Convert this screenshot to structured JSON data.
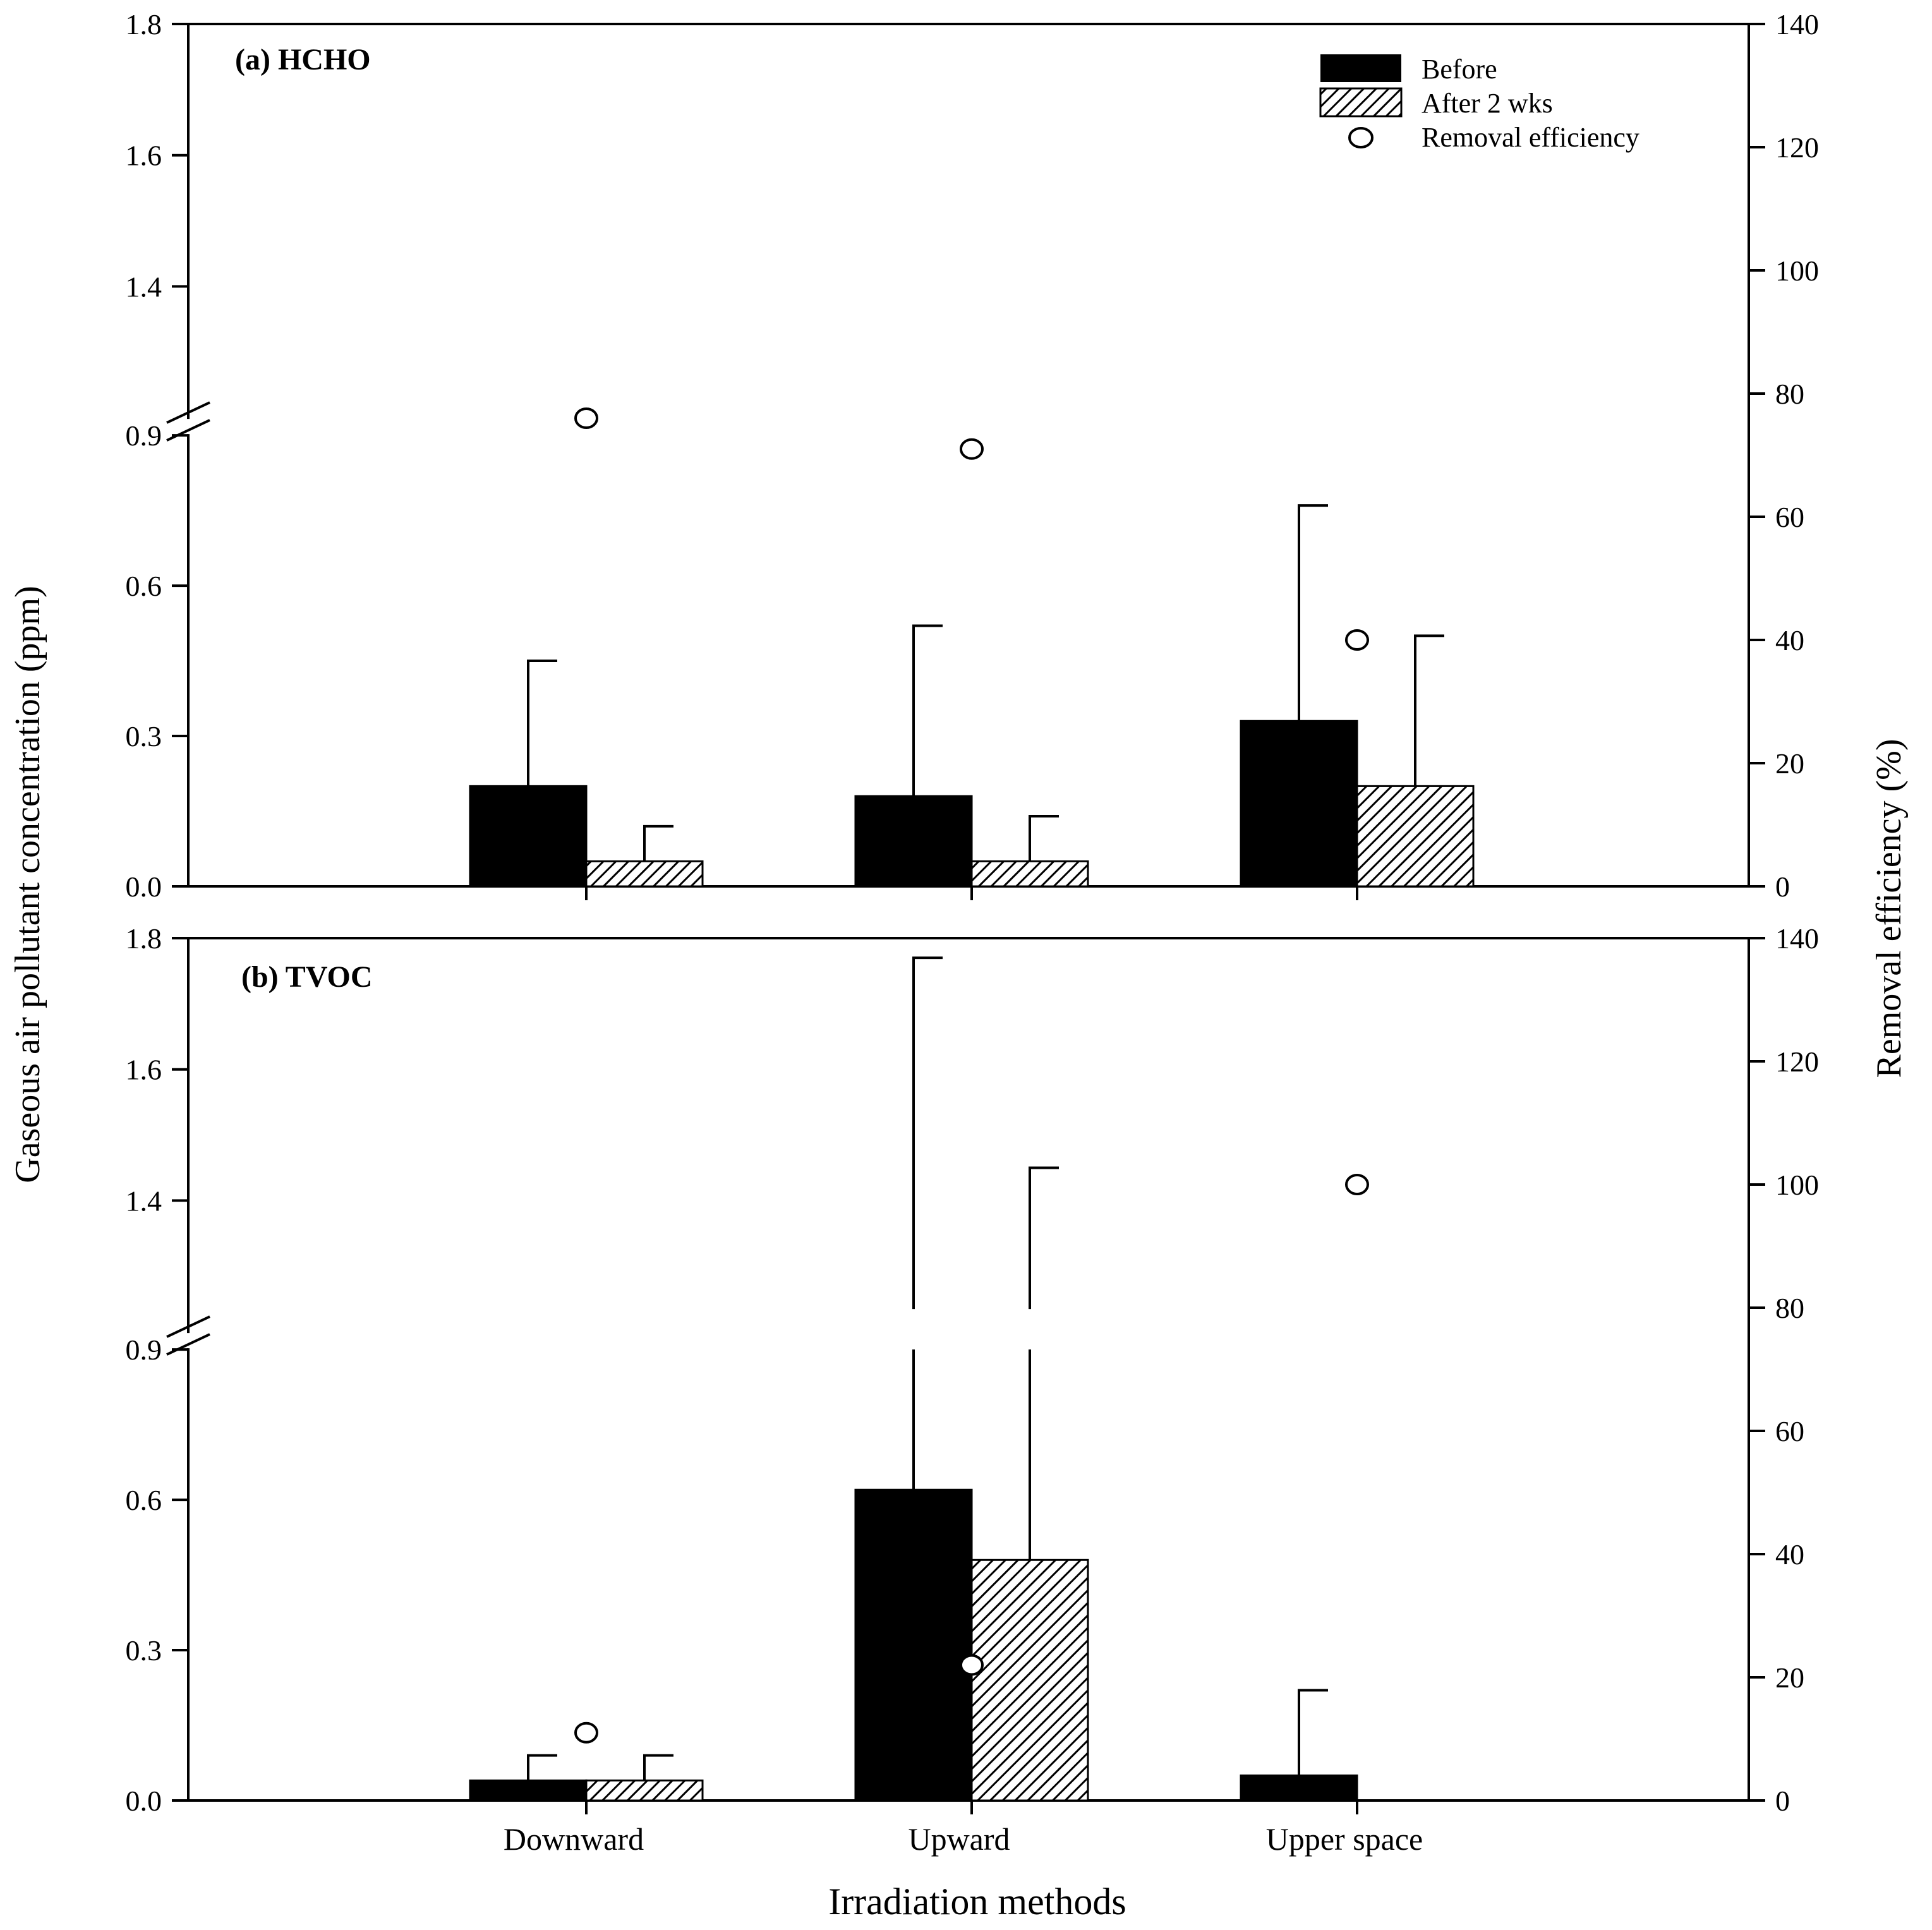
{
  "chart_data": {
    "type": "bar",
    "categories": [
      "Downward",
      "Upward",
      "Upper space"
    ],
    "xlabel": "Irradiation methods",
    "ylabel_left": "Gaseous air pollutant concentration (ppm)",
    "ylabel_right": "Removal efficiency (%)",
    "legend": {
      "placement": "top-right",
      "before": "Before",
      "after": "After 2 wks",
      "removal": "Removal efficiency"
    },
    "left_axis": {
      "broken": true,
      "lower_range": [
        0,
        0.9
      ],
      "upper_range": [
        1.2,
        1.8
      ],
      "ticks_lower": [
        0.0,
        0.3,
        0.6,
        0.9
      ],
      "tick_labels_lower": [
        "0.0",
        "0.3",
        "0.6",
        "0.9"
      ],
      "ticks_upper": [
        1.4,
        1.6,
        1.8
      ],
      "tick_labels_upper": [
        "1.4",
        "1.6",
        "1.8"
      ]
    },
    "right_axis": {
      "range": [
        0,
        140
      ],
      "ticks": [
        0,
        20,
        40,
        60,
        80,
        100,
        120,
        140
      ],
      "tick_labels": [
        "0",
        "20",
        "40",
        "60",
        "80",
        "100",
        "120",
        "140"
      ]
    },
    "panels": [
      {
        "title": "(a) HCHO",
        "series": [
          {
            "name": "Before",
            "values": [
              0.2,
              0.18,
              0.33
            ],
            "errors": [
              0.25,
              0.34,
              0.43
            ]
          },
          {
            "name": "After 2 wks",
            "values": [
              0.05,
              0.05,
              0.2
            ],
            "errors": [
              0.07,
              0.09,
              0.3
            ]
          }
        ],
        "removal_efficiency": [
          76,
          71,
          40
        ]
      },
      {
        "title": "(b) TVOC",
        "series": [
          {
            "name": "Before",
            "values": [
              0.04,
              0.62,
              0.05
            ],
            "errors": [
              0.05,
              1.15,
              0.17
            ]
          },
          {
            "name": "After 2 wks",
            "values": [
              0.04,
              0.48,
              0.0
            ],
            "errors": [
              0.05,
              0.97,
              0.0
            ]
          }
        ],
        "removal_efficiency": [
          11,
          22,
          100
        ]
      }
    ]
  }
}
